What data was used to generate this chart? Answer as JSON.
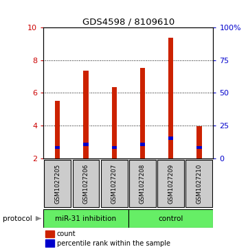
{
  "title": "GDS4598 / 8109610",
  "samples": [
    "GSM1027205",
    "GSM1027206",
    "GSM1027207",
    "GSM1027208",
    "GSM1027209",
    "GSM1027210"
  ],
  "red_values": [
    5.5,
    7.35,
    6.35,
    7.5,
    9.35,
    3.95
  ],
  "blue_values": [
    2.55,
    2.75,
    2.55,
    2.75,
    3.1,
    2.55
  ],
  "blue_heights": [
    0.18,
    0.18,
    0.18,
    0.18,
    0.22,
    0.18
  ],
  "ymin": 2,
  "ymax": 10,
  "yticks": [
    2,
    4,
    6,
    8,
    10
  ],
  "right_tick_positions": [
    2,
    4,
    6,
    8,
    10
  ],
  "right_tick_labels": [
    "0",
    "25",
    "50",
    "75",
    "100%"
  ],
  "left_axis_color": "#cc0000",
  "right_axis_color": "#0000cc",
  "bar_color_red": "#cc2200",
  "bar_color_blue": "#0000cc",
  "bar_width": 0.18,
  "legend_count": "count",
  "legend_percentile": "percentile rank within the sample",
  "group1_label": "miR-31 inhibition",
  "group2_label": "control",
  "group_color": "#66ee66",
  "protocol_label": "protocol",
  "label_bg": "#cccccc",
  "plot_bg": "#ffffff"
}
